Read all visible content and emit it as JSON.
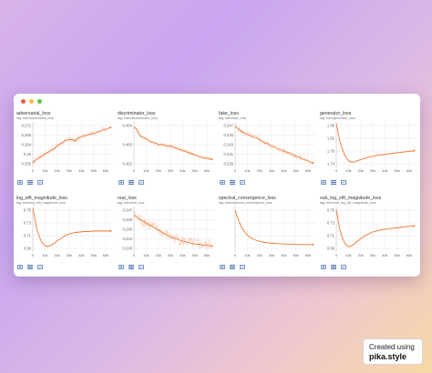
{
  "window": {
    "accent": "#f07a3a",
    "grid_color": "#e6e6e6"
  },
  "x_ticks": [
    "0",
    "10k",
    "20k",
    "30k",
    "40k",
    "50k",
    "60k"
  ],
  "charts": [
    {
      "title": "adversarial_loss",
      "tag": "tag: train/adversarial_loss",
      "yticks": [
        "0.272",
        "0.268",
        "0.264",
        "0.26",
        "0.256"
      ],
      "ylim": [
        0.254,
        0.274
      ],
      "noise": 0.0012,
      "points": [
        [
          0,
          0.256
        ],
        [
          3000,
          0.2575
        ],
        [
          6000,
          0.2585
        ],
        [
          9000,
          0.2595
        ],
        [
          12000,
          0.2605
        ],
        [
          15000,
          0.2615
        ],
        [
          18000,
          0.2625
        ],
        [
          21000,
          0.2638
        ],
        [
          24000,
          0.2648
        ],
        [
          27000,
          0.2658
        ],
        [
          30000,
          0.2662
        ],
        [
          33000,
          0.2662
        ],
        [
          35000,
          0.2655
        ],
        [
          37000,
          0.2668
        ],
        [
          40000,
          0.2675
        ],
        [
          43000,
          0.268
        ],
        [
          46000,
          0.2685
        ],
        [
          49000,
          0.2688
        ],
        [
          52000,
          0.2692
        ],
        [
          55000,
          0.2698
        ],
        [
          58000,
          0.2705
        ],
        [
          61000,
          0.271
        ],
        [
          64000,
          0.2715
        ]
      ]
    },
    {
      "title": "discriminator_loss",
      "tag": "tag: train/discriminator_loss",
      "yticks": [
        "0.464",
        "0.463",
        "0.462"
      ],
      "ylim": [
        0.4613,
        0.4647
      ],
      "noise": 0.00015,
      "points": [
        [
          0,
          0.4643
        ],
        [
          2000,
          0.4642
        ],
        [
          4000,
          0.4638
        ],
        [
          6000,
          0.4636
        ],
        [
          9000,
          0.4635
        ],
        [
          12000,
          0.4633
        ],
        [
          15000,
          0.4632
        ],
        [
          18000,
          0.4631
        ],
        [
          21000,
          0.463
        ],
        [
          24000,
          0.463
        ],
        [
          27000,
          0.4629
        ],
        [
          30000,
          0.4629
        ],
        [
          33000,
          0.4628
        ],
        [
          36000,
          0.4627
        ],
        [
          39000,
          0.4626
        ],
        [
          42000,
          0.4625
        ],
        [
          45000,
          0.4624
        ],
        [
          48000,
          0.4623
        ],
        [
          51000,
          0.4622
        ],
        [
          54000,
          0.4621
        ],
        [
          57000,
          0.462
        ],
        [
          60000,
          0.462
        ],
        [
          64000,
          0.4619
        ]
      ]
    },
    {
      "title": "fake_loss",
      "tag": "tag: train/fake_loss",
      "yticks": [
        "0.247",
        "0.245",
        "0.243",
        "0.241",
        "0.239"
      ],
      "ylim": [
        0.2378,
        0.2478
      ],
      "noise": 0.0007,
      "points": [
        [
          0,
          0.2468
        ],
        [
          3000,
          0.2462
        ],
        [
          6000,
          0.2455
        ],
        [
          9000,
          0.2452
        ],
        [
          12000,
          0.2448
        ],
        [
          15000,
          0.2445
        ],
        [
          18000,
          0.2442
        ],
        [
          21000,
          0.2438
        ],
        [
          24000,
          0.2432
        ],
        [
          27000,
          0.243
        ],
        [
          30000,
          0.2425
        ],
        [
          33000,
          0.2422
        ],
        [
          36000,
          0.2418
        ],
        [
          39000,
          0.2415
        ],
        [
          42000,
          0.2412
        ],
        [
          45000,
          0.241
        ],
        [
          48000,
          0.2405
        ],
        [
          51000,
          0.2402
        ],
        [
          54000,
          0.2398
        ],
        [
          57000,
          0.2395
        ],
        [
          60000,
          0.2392
        ],
        [
          64000,
          0.2388
        ]
      ]
    },
    {
      "title": "generator_loss",
      "tag": "tag: train/generator_loss",
      "yticks": [
        "1.86",
        "1.82",
        "1.78",
        "1.74"
      ],
      "ylim": [
        1.725,
        1.875
      ],
      "noise": 0.002,
      "points": [
        [
          0,
          1.87
        ],
        [
          1500,
          1.84
        ],
        [
          3000,
          1.81
        ],
        [
          5000,
          1.785
        ],
        [
          7000,
          1.765
        ],
        [
          9000,
          1.752
        ],
        [
          11000,
          1.745
        ],
        [
          13000,
          1.742
        ],
        [
          15000,
          1.744
        ],
        [
          18000,
          1.748
        ],
        [
          21000,
          1.752
        ],
        [
          24000,
          1.756
        ],
        [
          27000,
          1.759
        ],
        [
          30000,
          1.762
        ],
        [
          34000,
          1.765
        ],
        [
          38000,
          1.767
        ],
        [
          42000,
          1.769
        ],
        [
          46000,
          1.771
        ],
        [
          50000,
          1.773
        ],
        [
          54000,
          1.775
        ],
        [
          58000,
          1.777
        ],
        [
          62000,
          1.779
        ],
        [
          64000,
          1.78
        ]
      ]
    },
    {
      "title": "log_stft_magnitude_loss",
      "tag": "tag: train/log_stft_magnitude_loss",
      "yticks": [
        "0.75",
        "0.73",
        "0.71",
        "0.69"
      ],
      "ylim": [
        0.685,
        0.765
      ],
      "noise": 0.001,
      "points": [
        [
          0,
          0.762
        ],
        [
          1500,
          0.745
        ],
        [
          3000,
          0.728
        ],
        [
          5000,
          0.714
        ],
        [
          7000,
          0.704
        ],
        [
          9000,
          0.698
        ],
        [
          11000,
          0.695
        ],
        [
          13000,
          0.695
        ],
        [
          15000,
          0.697
        ],
        [
          18000,
          0.701
        ],
        [
          21000,
          0.706
        ],
        [
          24000,
          0.71
        ],
        [
          27000,
          0.714
        ],
        [
          30000,
          0.717
        ],
        [
          34000,
          0.719
        ],
        [
          38000,
          0.72
        ],
        [
          42000,
          0.721
        ],
        [
          46000,
          0.721
        ],
        [
          50000,
          0.722
        ],
        [
          54000,
          0.722
        ],
        [
          58000,
          0.722
        ],
        [
          62000,
          0.722
        ],
        [
          64000,
          0.722
        ]
      ]
    },
    {
      "title": "real_loss",
      "tag": "tag: train/real_loss",
      "yticks": [
        "0.247",
        "0.246",
        "0.245",
        "0.244",
        "0.243"
      ],
      "ylim": [
        0.2425,
        0.2478
      ],
      "noise": 0.0007,
      "points": [
        [
          0,
          0.2468
        ],
        [
          3000,
          0.2465
        ],
        [
          6000,
          0.2462
        ],
        [
          9000,
          0.246
        ],
        [
          12000,
          0.2457
        ],
        [
          15000,
          0.2455
        ],
        [
          18000,
          0.2452
        ],
        [
          21000,
          0.245
        ],
        [
          24000,
          0.2447
        ],
        [
          27000,
          0.2445
        ],
        [
          30000,
          0.2443
        ],
        [
          33000,
          0.2441
        ],
        [
          36000,
          0.244
        ],
        [
          39000,
          0.2438
        ],
        [
          42000,
          0.2437
        ],
        [
          45000,
          0.2436
        ],
        [
          48000,
          0.2435
        ],
        [
          51000,
          0.2434
        ],
        [
          54000,
          0.2434
        ],
        [
          57000,
          0.2433
        ],
        [
          60000,
          0.2433
        ],
        [
          64000,
          0.2432
        ]
      ]
    },
    {
      "title": "spectral_convergence_loss",
      "tag": "tag: train/spectral_convergence_loss",
      "yticks": [
        "",
        "",
        "",
        ""
      ],
      "ylim": [
        0,
        1
      ],
      "noise": 0.003,
      "points": [
        [
          0,
          0.92
        ],
        [
          1500,
          0.8
        ],
        [
          3000,
          0.68
        ],
        [
          5000,
          0.56
        ],
        [
          7000,
          0.47
        ],
        [
          9000,
          0.4
        ],
        [
          11000,
          0.35
        ],
        [
          13000,
          0.31
        ],
        [
          16000,
          0.27
        ],
        [
          19000,
          0.245
        ],
        [
          22000,
          0.225
        ],
        [
          25000,
          0.21
        ],
        [
          28000,
          0.2
        ],
        [
          32000,
          0.19
        ],
        [
          36000,
          0.182
        ],
        [
          40000,
          0.176
        ],
        [
          44000,
          0.172
        ],
        [
          48000,
          0.168
        ],
        [
          52000,
          0.166
        ],
        [
          56000,
          0.164
        ],
        [
          60000,
          0.163
        ],
        [
          64000,
          0.162
        ]
      ]
    },
    {
      "title": "sub_log_stft_magnitude_loss",
      "tag": "tag: train/sub_log_stft_magnitude_loss",
      "yticks": [
        "0.75",
        "0.73",
        "0.71",
        "0.69"
      ],
      "ylim": [
        0.688,
        0.765
      ],
      "noise": 0.0012,
      "points": [
        [
          0,
          0.76
        ],
        [
          1500,
          0.742
        ],
        [
          3000,
          0.725
        ],
        [
          5000,
          0.712
        ],
        [
          7000,
          0.703
        ],
        [
          9000,
          0.698
        ],
        [
          11000,
          0.697
        ],
        [
          13000,
          0.699
        ],
        [
          15000,
          0.702
        ],
        [
          18000,
          0.707
        ],
        [
          21000,
          0.712
        ],
        [
          24000,
          0.716
        ],
        [
          27000,
          0.719
        ],
        [
          30000,
          0.722
        ],
        [
          34000,
          0.724
        ],
        [
          38000,
          0.726
        ],
        [
          42000,
          0.727
        ],
        [
          46000,
          0.728
        ],
        [
          50000,
          0.729
        ],
        [
          54000,
          0.73
        ],
        [
          58000,
          0.731
        ],
        [
          62000,
          0.732
        ],
        [
          64000,
          0.732
        ]
      ]
    }
  ],
  "badge": {
    "line1": "Created using",
    "line2": "pika.style"
  }
}
